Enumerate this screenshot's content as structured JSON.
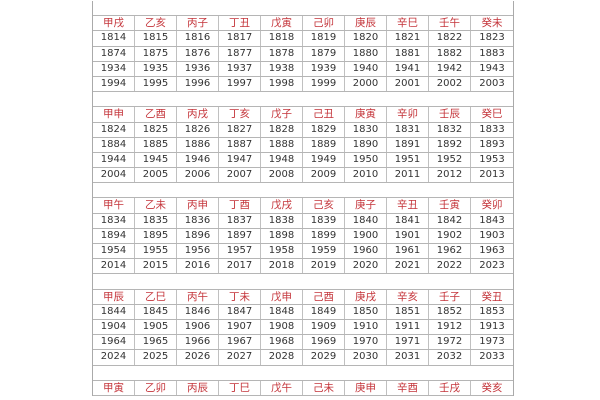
{
  "blocks": [
    {
      "headers": [
        "甲戌",
        "乙亥",
        "丙子",
        "丁丑",
        "戊寅",
        "己卯",
        "庚辰",
        "辛巳",
        "壬午",
        "癸未"
      ],
      "years": [
        [
          1814,
          1815,
          1816,
          1817,
          1818,
          1819,
          1820,
          1821,
          1822,
          1823
        ],
        [
          1874,
          1875,
          1876,
          1877,
          1878,
          1879,
          1880,
          1881,
          1882,
          1883
        ],
        [
          1934,
          1935,
          1936,
          1937,
          1938,
          1939,
          1940,
          1941,
          1942,
          1943
        ],
        [
          1994,
          1995,
          1996,
          1997,
          1998,
          1999,
          2000,
          2001,
          2002,
          2003
        ]
      ]
    },
    {
      "headers": [
        "甲申",
        "乙酉",
        "丙戌",
        "丁亥",
        "戊子",
        "己丑",
        "庚寅",
        "辛卯",
        "壬辰",
        "癸巳"
      ],
      "years": [
        [
          1824,
          1825,
          1826,
          1827,
          1828,
          1829,
          1830,
          1831,
          1832,
          1833
        ],
        [
          1884,
          1885,
          1886,
          1887,
          1888,
          1889,
          1890,
          1891,
          1892,
          1893
        ],
        [
          1944,
          1945,
          1946,
          1947,
          1948,
          1949,
          1950,
          1951,
          1952,
          1953
        ],
        [
          2004,
          2005,
          2006,
          2007,
          2008,
          2009,
          2010,
          2011,
          2012,
          2013
        ]
      ]
    },
    {
      "headers": [
        "甲午",
        "乙未",
        "丙申",
        "丁酉",
        "戊戌",
        "己亥",
        "庚子",
        "辛丑",
        "壬寅",
        "癸卯"
      ],
      "years": [
        [
          1834,
          1835,
          1836,
          1837,
          1838,
          1839,
          1840,
          1841,
          1842,
          1843
        ],
        [
          1894,
          1895,
          1896,
          1897,
          1898,
          1899,
          1900,
          1901,
          1902,
          1903
        ],
        [
          1954,
          1955,
          1956,
          1957,
          1958,
          1959,
          1960,
          1961,
          1962,
          1963
        ],
        [
          2014,
          2015,
          2016,
          2017,
          2018,
          2019,
          2020,
          2021,
          2022,
          2023
        ]
      ]
    },
    {
      "headers": [
        "甲辰",
        "乙巳",
        "丙午",
        "丁未",
        "戊申",
        "己酉",
        "庚戌",
        "辛亥",
        "壬子",
        "癸丑"
      ],
      "years": [
        [
          1844,
          1845,
          1846,
          1847,
          1848,
          1849,
          1850,
          1851,
          1852,
          1853
        ],
        [
          1904,
          1905,
          1906,
          1907,
          1908,
          1909,
          1910,
          1911,
          1912,
          1913
        ],
        [
          1964,
          1965,
          1966,
          1967,
          1968,
          1969,
          1970,
          1971,
          1972,
          1973
        ],
        [
          2024,
          2025,
          2026,
          2027,
          2028,
          2029,
          2030,
          2031,
          2032,
          2033
        ]
      ]
    },
    {
      "headers": [
        "甲寅",
        "乙卯",
        "丙辰",
        "丁巳",
        "戊午",
        "己未",
        "庚申",
        "辛酉",
        "壬戌",
        "癸亥"
      ],
      "years": []
    }
  ],
  "colors": {
    "header_text": "#c4343a",
    "year_text": "#333333",
    "grid": "#b5b5b5"
  }
}
